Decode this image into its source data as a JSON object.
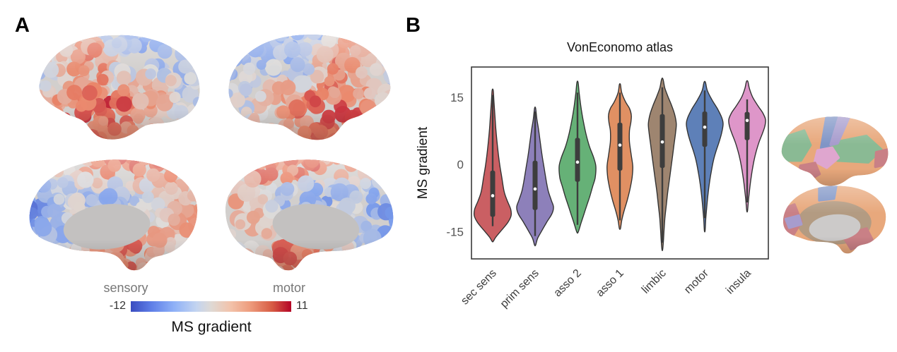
{
  "panel_a": {
    "label": "A",
    "colorbar": {
      "left_label": "sensory",
      "right_label": "motor",
      "min_label": "-12",
      "max_label": "11",
      "title": "MS gradient",
      "colormap": "coolwarm",
      "color_stops": [
        "#3a4cc0",
        "#5f7fe8",
        "#8fb1f7",
        "#c3d4f0",
        "#ded9d4",
        "#f2c3ab",
        "#ee9d7e",
        "#d75c44",
        "#b40426"
      ],
      "value_range": [
        -12,
        11
      ]
    }
  },
  "panel_b": {
    "label": "B",
    "atlas_regions": [
      {
        "name": "sec sens",
        "color": "#c98086"
      },
      {
        "name": "prim sens",
        "color": "#a79ccd"
      },
      {
        "name": "asso 2",
        "color": "#8aba94"
      },
      {
        "name": "asso 1",
        "color": "#e8a87c"
      },
      {
        "name": "limbic",
        "color": "#b39b82"
      },
      {
        "name": "motor",
        "color": "#8095c6"
      },
      {
        "name": "insula",
        "color": "#dfa6cf"
      }
    ]
  },
  "chart_data": {
    "type": "violin",
    "title": "VonEconomo atlas",
    "xlabel": "",
    "ylabel": "MS gradient",
    "yticks": [
      15,
      0,
      -15
    ],
    "ylim": [
      -21,
      22
    ],
    "grid": false,
    "legend": "none",
    "categories": [
      "sec sens",
      "prim sens",
      "asso 2",
      "asso 1",
      "limbic",
      "motor",
      "insula"
    ],
    "series": [
      {
        "name": "sec sens",
        "color": "#C44E52",
        "median": -7.0,
        "q1": -11.7,
        "q3": -1.4,
        "whisker_low": -13.8,
        "whisker_high": 15.5,
        "min": -17.2,
        "max": 16.5,
        "profile": [
          [
            16.5,
            0.03
          ],
          [
            14,
            0.07
          ],
          [
            11,
            0.12
          ],
          [
            8,
            0.17
          ],
          [
            4,
            0.26
          ],
          [
            0,
            0.38
          ],
          [
            -3,
            0.5
          ],
          [
            -6,
            0.62
          ],
          [
            -8,
            0.78
          ],
          [
            -10,
            0.98
          ],
          [
            -11.5,
            1.0
          ],
          [
            -13,
            0.82
          ],
          [
            -15,
            0.42
          ],
          [
            -16.3,
            0.16
          ],
          [
            -17.2,
            0.03
          ]
        ]
      },
      {
        "name": "prim sens",
        "color": "#8172B3",
        "median": -5.5,
        "q1": -10.2,
        "q3": 0.8,
        "whisker_low": -16.0,
        "whisker_high": 11.8,
        "min": -18.0,
        "max": 12.5,
        "profile": [
          [
            12.5,
            0.03
          ],
          [
            10,
            0.1
          ],
          [
            8,
            0.18
          ],
          [
            5,
            0.28
          ],
          [
            2,
            0.38
          ],
          [
            -1,
            0.5
          ],
          [
            -4,
            0.62
          ],
          [
            -6,
            0.72
          ],
          [
            -8,
            0.88
          ],
          [
            -9.5,
            1.0
          ],
          [
            -11,
            0.92
          ],
          [
            -13,
            0.62
          ],
          [
            -15,
            0.34
          ],
          [
            -16.5,
            0.14
          ],
          [
            -18,
            0.03
          ]
        ]
      },
      {
        "name": "asso 2",
        "color": "#55A868",
        "median": 0.5,
        "q1": -3.9,
        "q3": 5.9,
        "whisker_low": -13.5,
        "whisker_high": 16.0,
        "min": -15.1,
        "max": 18.3,
        "profile": [
          [
            18.3,
            0.03
          ],
          [
            16,
            0.09
          ],
          [
            13,
            0.18
          ],
          [
            10,
            0.3
          ],
          [
            7,
            0.45
          ],
          [
            4,
            0.65
          ],
          [
            1.5,
            0.88
          ],
          [
            -0.5,
            1.0
          ],
          [
            -3,
            0.96
          ],
          [
            -5,
            0.82
          ],
          [
            -7,
            0.68
          ],
          [
            -9,
            0.52
          ],
          [
            -11,
            0.36
          ],
          [
            -13,
            0.2
          ],
          [
            -15.1,
            0.04
          ]
        ]
      },
      {
        "name": "asso 1",
        "color": "#DD8452",
        "median": 4.3,
        "q1": -1.4,
        "q3": 9.3,
        "whisker_low": -12.5,
        "whisker_high": 16.0,
        "min": -14.3,
        "max": 17.8,
        "profile": [
          [
            17.8,
            0.03
          ],
          [
            16,
            0.1
          ],
          [
            14,
            0.3
          ],
          [
            12.5,
            0.52
          ],
          [
            11,
            0.62
          ],
          [
            9.5,
            0.6
          ],
          [
            7.5,
            0.52
          ],
          [
            5,
            0.52
          ],
          [
            2,
            0.62
          ],
          [
            -0.5,
            0.7
          ],
          [
            -3,
            0.66
          ],
          [
            -5.5,
            0.55
          ],
          [
            -8,
            0.4
          ],
          [
            -10.5,
            0.22
          ],
          [
            -12.5,
            0.1
          ],
          [
            -14.3,
            0.03
          ]
        ]
      },
      {
        "name": "limbic",
        "color": "#937860",
        "median": 5.0,
        "q1": -0.8,
        "q3": 11.2,
        "whisker_low": -17.5,
        "whisker_high": 17.2,
        "min": -19.0,
        "max": 19.0,
        "profile": [
          [
            19,
            0.04
          ],
          [
            17,
            0.14
          ],
          [
            15,
            0.32
          ],
          [
            13,
            0.52
          ],
          [
            11,
            0.68
          ],
          [
            9,
            0.76
          ],
          [
            7,
            0.72
          ],
          [
            4.5,
            0.64
          ],
          [
            2,
            0.56
          ],
          [
            -0.5,
            0.48
          ],
          [
            -3,
            0.4
          ],
          [
            -6,
            0.3
          ],
          [
            -9,
            0.22
          ],
          [
            -12,
            0.14
          ],
          [
            -15,
            0.09
          ],
          [
            -17,
            0.06
          ],
          [
            -19,
            0.02
          ]
        ]
      },
      {
        "name": "motor",
        "color": "#4C72B0",
        "median": 8.3,
        "q1": 3.9,
        "q3": 11.8,
        "whisker_low": -12.0,
        "whisker_high": 16.5,
        "min": -14.8,
        "max": 18.3,
        "profile": [
          [
            18.3,
            0.04
          ],
          [
            16.5,
            0.14
          ],
          [
            14.5,
            0.38
          ],
          [
            12.5,
            0.68
          ],
          [
            10.5,
            0.92
          ],
          [
            9,
            1.0
          ],
          [
            7,
            0.92
          ],
          [
            5,
            0.78
          ],
          [
            3,
            0.62
          ],
          [
            1,
            0.48
          ],
          [
            -1.5,
            0.36
          ],
          [
            -4,
            0.26
          ],
          [
            -7,
            0.17
          ],
          [
            -10,
            0.1
          ],
          [
            -12.5,
            0.05
          ],
          [
            -14.8,
            0.02
          ]
        ]
      },
      {
        "name": "insula",
        "color": "#DA8BC3",
        "median": 9.8,
        "q1": 5.4,
        "q3": 11.7,
        "whisker_low": -8.5,
        "whisker_high": 14.5,
        "min": -10.4,
        "max": 18.5,
        "profile": [
          [
            18.5,
            0.04
          ],
          [
            17,
            0.12
          ],
          [
            15,
            0.3
          ],
          [
            13,
            0.6
          ],
          [
            11.5,
            0.85
          ],
          [
            10,
            1.0
          ],
          [
            8.5,
            0.96
          ],
          [
            7,
            0.84
          ],
          [
            5,
            0.65
          ],
          [
            3,
            0.5
          ],
          [
            1,
            0.38
          ],
          [
            -1.5,
            0.27
          ],
          [
            -4,
            0.18
          ],
          [
            -6.5,
            0.11
          ],
          [
            -8.5,
            0.06
          ],
          [
            -10.4,
            0.02
          ]
        ]
      }
    ]
  }
}
